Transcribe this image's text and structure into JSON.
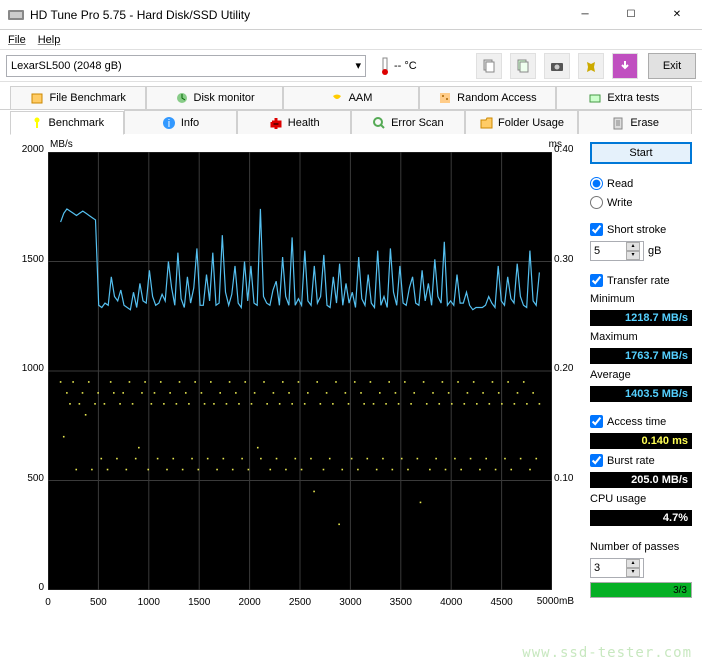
{
  "window": {
    "title": "HD Tune Pro 5.75 - Hard Disk/SSD Utility"
  },
  "menu": {
    "file": "File",
    "help": "Help"
  },
  "toolbar": {
    "drive": "LexarSL500 (2048 gB)",
    "temp": "-- °C",
    "exit": "Exit"
  },
  "tabs_top": [
    {
      "label": "File Benchmark"
    },
    {
      "label": "Disk monitor"
    },
    {
      "label": "AAM"
    },
    {
      "label": "Random Access"
    },
    {
      "label": "Extra tests"
    }
  ],
  "tabs_bottom": [
    {
      "label": "Benchmark",
      "active": true
    },
    {
      "label": "Info"
    },
    {
      "label": "Health"
    },
    {
      "label": "Error Scan"
    },
    {
      "label": "Folder Usage"
    },
    {
      "label": "Erase"
    }
  ],
  "chart": {
    "y_left_label": "MB/s",
    "y_right_label": "ms",
    "x_label": "5000mB",
    "y_left_ticks": [
      {
        "v": "2000",
        "p": 0
      },
      {
        "v": "1500",
        "p": 25
      },
      {
        "v": "1000",
        "p": 50
      },
      {
        "v": "500",
        "p": 75
      },
      {
        "v": "0",
        "p": 100
      }
    ],
    "y_right_ticks": [
      {
        "v": "0.40",
        "p": 0
      },
      {
        "v": "0.30",
        "p": 25
      },
      {
        "v": "0.20",
        "p": 50
      },
      {
        "v": "0.10",
        "p": 75
      }
    ],
    "x_ticks": [
      {
        "v": "0",
        "p": 0
      },
      {
        "v": "500",
        "p": 10
      },
      {
        "v": "1000",
        "p": 20
      },
      {
        "v": "1500",
        "p": 30
      },
      {
        "v": "2000",
        "p": 40
      },
      {
        "v": "2500",
        "p": 50
      },
      {
        "v": "3000",
        "p": 60
      },
      {
        "v": "3500",
        "p": 70
      },
      {
        "v": "4000",
        "p": 80
      },
      {
        "v": "4500",
        "p": 90
      }
    ],
    "grid_color": "#3a3a3a",
    "bg_color": "#000000",
    "line_color": "#55c0f0",
    "scatter_color": "#e8e850",
    "transfer_rate_series": [
      1680,
      1720,
      1740,
      1730,
      1720,
      1710,
      1720,
      1730,
      1720,
      1710,
      1700,
      1690,
      1300,
      1290,
      1310,
      1300,
      1430,
      1340,
      1320,
      1370,
      1300,
      1290,
      1280,
      1360,
      1290,
      1400,
      1320,
      1310,
      1460,
      1340,
      1300,
      1310,
      1350,
      1320,
      1500,
      1380,
      1300,
      1540,
      1330,
      1290,
      1430,
      1310,
      1380,
      1560,
      1300,
      1300,
      1440,
      1320,
      1540,
      1300,
      1310,
      1620,
      1360,
      1300,
      1350,
      1480,
      1310,
      1290,
      1500,
      1320,
      1480,
      1310,
      1300,
      1740,
      1340,
      1310,
      1300,
      1370,
      1410,
      1300,
      1520,
      1340,
      1300,
      1610,
      1300,
      1330,
      1300,
      1550,
      1320,
      1300,
      1480,
      1310,
      1340,
      1530,
      1300,
      1290,
      1430,
      1310,
      1490,
      1300,
      1400,
      1310,
      1360,
      1290,
      1520,
      1330,
      1300,
      1440,
      1310,
      1290,
      1550,
      1300,
      1340,
      1290,
      1560,
      1360,
      1300,
      1480,
      1310,
      1300,
      1380,
      1430,
      1310,
      1300,
      1460,
      1320,
      1400,
      1300,
      1510,
      1340,
      1310,
      1590,
      1300,
      1320,
      1300,
      1440,
      1310,
      1310,
      1360,
      1300,
      1280,
      1290,
      1290,
      1290,
      1300,
      1340,
      1310,
      1290,
      1480,
      1320,
      1300,
      1430,
      1330,
      1310,
      1490,
      1340,
      1300,
      1290,
      1550,
      1320,
      1300,
      1450
    ],
    "access_time_series": [
      0.19,
      0.14,
      0.18,
      0.17,
      0.19,
      0.11,
      0.17,
      0.18,
      0.16,
      0.19,
      0.11,
      0.17,
      0.18,
      0.12,
      0.17,
      0.11,
      0.19,
      0.18,
      0.12,
      0.17,
      0.18,
      0.11,
      0.19,
      0.17,
      0.12,
      0.13,
      0.18,
      0.19,
      0.11,
      0.17,
      0.18,
      0.12,
      0.19,
      0.17,
      0.11,
      0.18,
      0.12,
      0.17,
      0.19,
      0.11,
      0.18,
      0.17,
      0.12,
      0.19,
      0.11,
      0.18,
      0.17,
      0.12,
      0.19,
      0.17,
      0.11,
      0.18,
      0.12,
      0.17,
      0.19,
      0.11,
      0.18,
      0.17,
      0.12,
      0.19,
      0.11,
      0.17,
      0.18,
      0.13,
      0.12,
      0.19,
      0.17,
      0.11,
      0.18,
      0.12,
      0.17,
      0.19,
      0.11,
      0.18,
      0.17,
      0.12,
      0.19,
      0.11,
      0.17,
      0.18,
      0.12,
      0.09,
      0.19,
      0.17,
      0.11,
      0.18,
      0.12,
      0.17,
      0.19,
      0.06,
      0.11,
      0.18,
      0.17,
      0.12,
      0.19,
      0.11,
      0.18,
      0.17,
      0.12,
      0.19,
      0.17,
      0.11,
      0.18,
      0.12,
      0.17,
      0.19,
      0.11,
      0.18,
      0.17,
      0.12,
      0.19,
      0.11,
      0.17,
      0.18,
      0.12,
      0.08,
      0.19,
      0.17,
      0.11,
      0.18,
      0.12,
      0.17,
      0.19,
      0.11,
      0.18,
      0.17,
      0.12,
      0.19,
      0.11,
      0.17,
      0.18,
      0.12,
      0.19,
      0.17,
      0.11,
      0.18,
      0.12,
      0.17,
      0.19,
      0.11,
      0.18,
      0.17,
      0.12,
      0.19,
      0.11,
      0.17,
      0.18,
      0.12,
      0.19,
      0.17,
      0.11,
      0.18,
      0.12,
      0.17
    ],
    "y_left_max": 2000,
    "y_right_max": 0.4
  },
  "controls": {
    "start": "Start",
    "read": "Read",
    "write": "Write",
    "short_stroke": "Short stroke",
    "short_stroke_val": "5",
    "short_stroke_unit": "gB",
    "transfer_rate": "Transfer rate",
    "minimum": "Minimum",
    "minimum_val": "1218.7 MB/s",
    "maximum": "Maximum",
    "maximum_val": "1763.7 MB/s",
    "average": "Average",
    "average_val": "1403.5 MB/s",
    "access_time": "Access time",
    "access_time_val": "0.140 ms",
    "burst_rate": "Burst rate",
    "burst_rate_val": "205.0 MB/s",
    "cpu_usage": "CPU usage",
    "cpu_usage_val": "4.7%",
    "passes_label": "Number of passes",
    "passes_val": "3",
    "passes_done": "3/3"
  },
  "watermark": "www.ssd-tester.com"
}
